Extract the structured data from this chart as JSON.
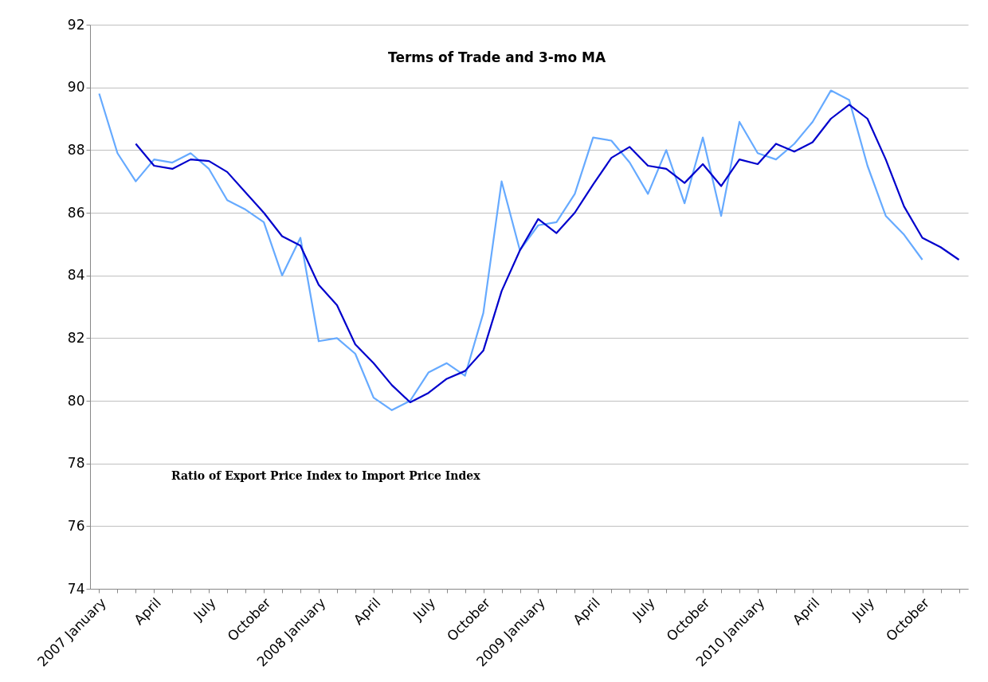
{
  "chart_data": {
    "type": "line",
    "title": "Terms of Trade and 3-mo MA",
    "categories": [
      "2007 January",
      null,
      null,
      "April",
      null,
      null,
      "July",
      null,
      null,
      "October",
      null,
      null,
      "2008 January",
      null,
      null,
      "April",
      null,
      null,
      "July",
      null,
      null,
      "October",
      null,
      null,
      "2009 January",
      null,
      null,
      "April",
      null,
      null,
      "July",
      null,
      null,
      "October",
      null,
      null,
      "2010 January",
      null,
      null,
      "April",
      null,
      null,
      "July",
      null,
      null,
      "October",
      null,
      null
    ],
    "series": [
      {
        "color": "#66aaff",
        "values": [
          89.8,
          87.9,
          87.0,
          87.7,
          87.6,
          87.9,
          87.4,
          86.4,
          86.1,
          85.7,
          84.0,
          85.2,
          81.9,
          82.0,
          81.5,
          80.1,
          79.7,
          80.0,
          80.9,
          81.2,
          80.8,
          82.8,
          87.0,
          84.8,
          85.6,
          85.7,
          86.6,
          88.4,
          88.3,
          87.6,
          86.6,
          88.0,
          86.3,
          88.4,
          85.9,
          88.9,
          87.9,
          87.7,
          88.2,
          88.9,
          89.9,
          89.6,
          87.5,
          85.9,
          85.3,
          84.5,
          null,
          null
        ]
      },
      {
        "color": "#0000cc",
        "values": [
          null,
          null,
          88.2,
          87.5,
          87.4,
          87.7,
          87.65,
          87.3,
          86.65,
          86.0,
          85.25,
          84.95,
          83.7,
          83.05,
          81.8,
          81.2,
          80.5,
          79.95,
          80.25,
          80.7,
          80.95,
          81.6,
          83.5,
          84.8,
          85.8,
          85.35,
          86.0,
          86.9,
          87.75,
          88.1,
          87.5,
          87.4,
          86.95,
          87.55,
          86.85,
          87.7,
          87.55,
          88.2,
          87.95,
          88.25,
          89.0,
          89.45,
          89.0,
          87.7,
          86.2,
          85.2,
          84.9,
          84.5
        ]
      }
    ],
    "ylim": [
      74,
      92
    ],
    "yticks": [
      74,
      76,
      78,
      80,
      82,
      84,
      86,
      88,
      90,
      92
    ],
    "grid": "y",
    "annotations": [
      "Ratio of Export Price Index to Import Price Index"
    ]
  }
}
